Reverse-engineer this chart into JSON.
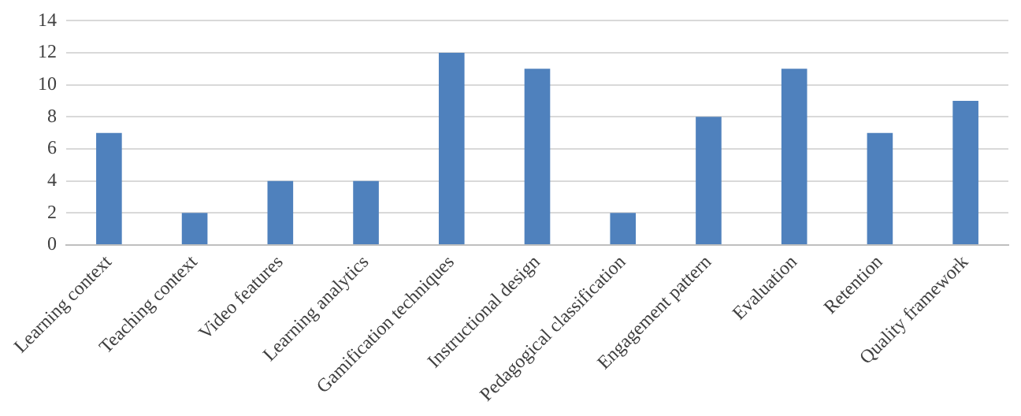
{
  "chart_data": {
    "type": "bar",
    "categories": [
      "Learning context",
      "Teaching context",
      "Video features",
      "Learning analytics",
      "Gamification techniques",
      "Instructional design",
      "Pedagogical classification",
      "Engagement pattern",
      "Evaluation",
      "Retention",
      "Quality framework"
    ],
    "values": [
      7,
      2,
      4,
      4,
      12,
      11,
      2,
      8,
      11,
      7,
      9
    ],
    "color": "#4f81bd",
    "ylim": [
      0,
      14
    ],
    "yticks": [
      0,
      2,
      4,
      6,
      8,
      10,
      12,
      14
    ],
    "grid": "y",
    "legend": false
  }
}
